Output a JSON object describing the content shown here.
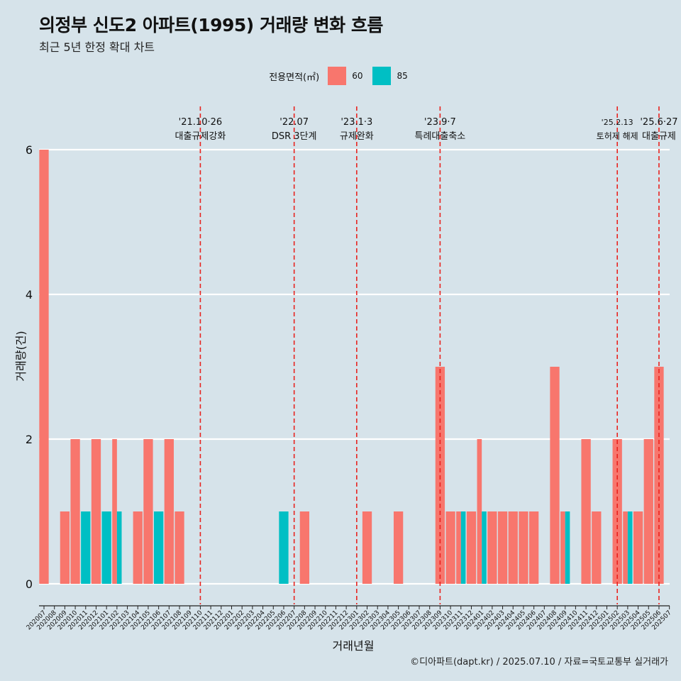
{
  "title": "의정부 신도2 아파트(1995) 거래량 변화 흐름",
  "subtitle": "최근 5년 한정 확대 차트",
  "caption": "©디아파트(dapt.kr) / 2025.07.10 / 자료=국토교통부 실거래가",
  "colors": {
    "background": "#d6e3ea",
    "grid": "#ffffff",
    "event_line": "#e8231f",
    "s60": "#f8766d",
    "s85": "#00bfc4"
  },
  "chart_data": {
    "type": "bar",
    "title": "의정부 신도2 아파트(1995) 거래량 변화 흐름",
    "subtitle": "최근 5년 한정 확대 차트",
    "xlabel": "거래년월",
    "ylabel": "거래량(건)",
    "ylim": [
      0,
      6
    ],
    "yticks": [
      0,
      2,
      4,
      6
    ],
    "grid": true,
    "legend": {
      "title": "전용면적(㎡)",
      "position": "top"
    },
    "categories": [
      "202007",
      "202008",
      "202009",
      "202010",
      "202011",
      "202012",
      "202101",
      "202102",
      "202103",
      "202104",
      "202105",
      "202106",
      "202107",
      "202108",
      "202109",
      "202110",
      "202111",
      "202112",
      "202201",
      "202202",
      "202203",
      "202204",
      "202205",
      "202206",
      "202207",
      "202208",
      "202209",
      "202210",
      "202211",
      "202212",
      "202301",
      "202302",
      "202303",
      "202304",
      "202305",
      "202306",
      "202307",
      "202308",
      "202309",
      "202310",
      "202311",
      "202312",
      "202401",
      "202402",
      "202403",
      "202404",
      "202405",
      "202406",
      "202407",
      "202408",
      "202409",
      "202410",
      "202411",
      "202412",
      "202501",
      "202502",
      "202503",
      "202504",
      "202505",
      "202506",
      "202507"
    ],
    "series": [
      {
        "name": "60",
        "values": [
          6,
          0,
          1,
          2,
          0,
          2,
          0,
          2,
          0,
          1,
          2,
          0,
          2,
          1,
          0,
          0,
          0,
          0,
          0,
          0,
          0,
          0,
          0,
          0,
          0,
          1,
          0,
          0,
          0,
          0,
          0,
          1,
          0,
          0,
          1,
          0,
          0,
          0,
          3,
          1,
          1,
          1,
          2,
          1,
          1,
          1,
          1,
          1,
          0,
          3,
          1,
          0,
          2,
          1,
          0,
          2,
          1,
          1,
          2,
          3,
          0
        ]
      },
      {
        "name": "85",
        "values": [
          0,
          0,
          0,
          0,
          1,
          0,
          1,
          1,
          0,
          0,
          0,
          1,
          0,
          0,
          0,
          0,
          0,
          0,
          0,
          0,
          0,
          0,
          0,
          1,
          0,
          0,
          0,
          0,
          0,
          0,
          0,
          0,
          0,
          0,
          0,
          0,
          0,
          0,
          0,
          0,
          1,
          0,
          1,
          0,
          0,
          0,
          0,
          0,
          0,
          0,
          1,
          0,
          0,
          0,
          0,
          0,
          1,
          0,
          0,
          0,
          0
        ]
      }
    ],
    "events": [
      {
        "date": "202110",
        "label1": "'21.10·26",
        "label2": "대출규제강화"
      },
      {
        "date": "202207",
        "label1": "'22.07",
        "label2": "DSR 3단계"
      },
      {
        "date": "202301",
        "label1": "'23.1·3",
        "label2": "규제완화"
      },
      {
        "date": "202309",
        "label1": "'23.9·7",
        "label2": "특례대출축소"
      },
      {
        "date": "202502",
        "label1": "'25.2.13",
        "label2": "토허제 해제"
      },
      {
        "date": "202506",
        "label1": "'25.6·27",
        "label2": "대출규제"
      }
    ]
  }
}
